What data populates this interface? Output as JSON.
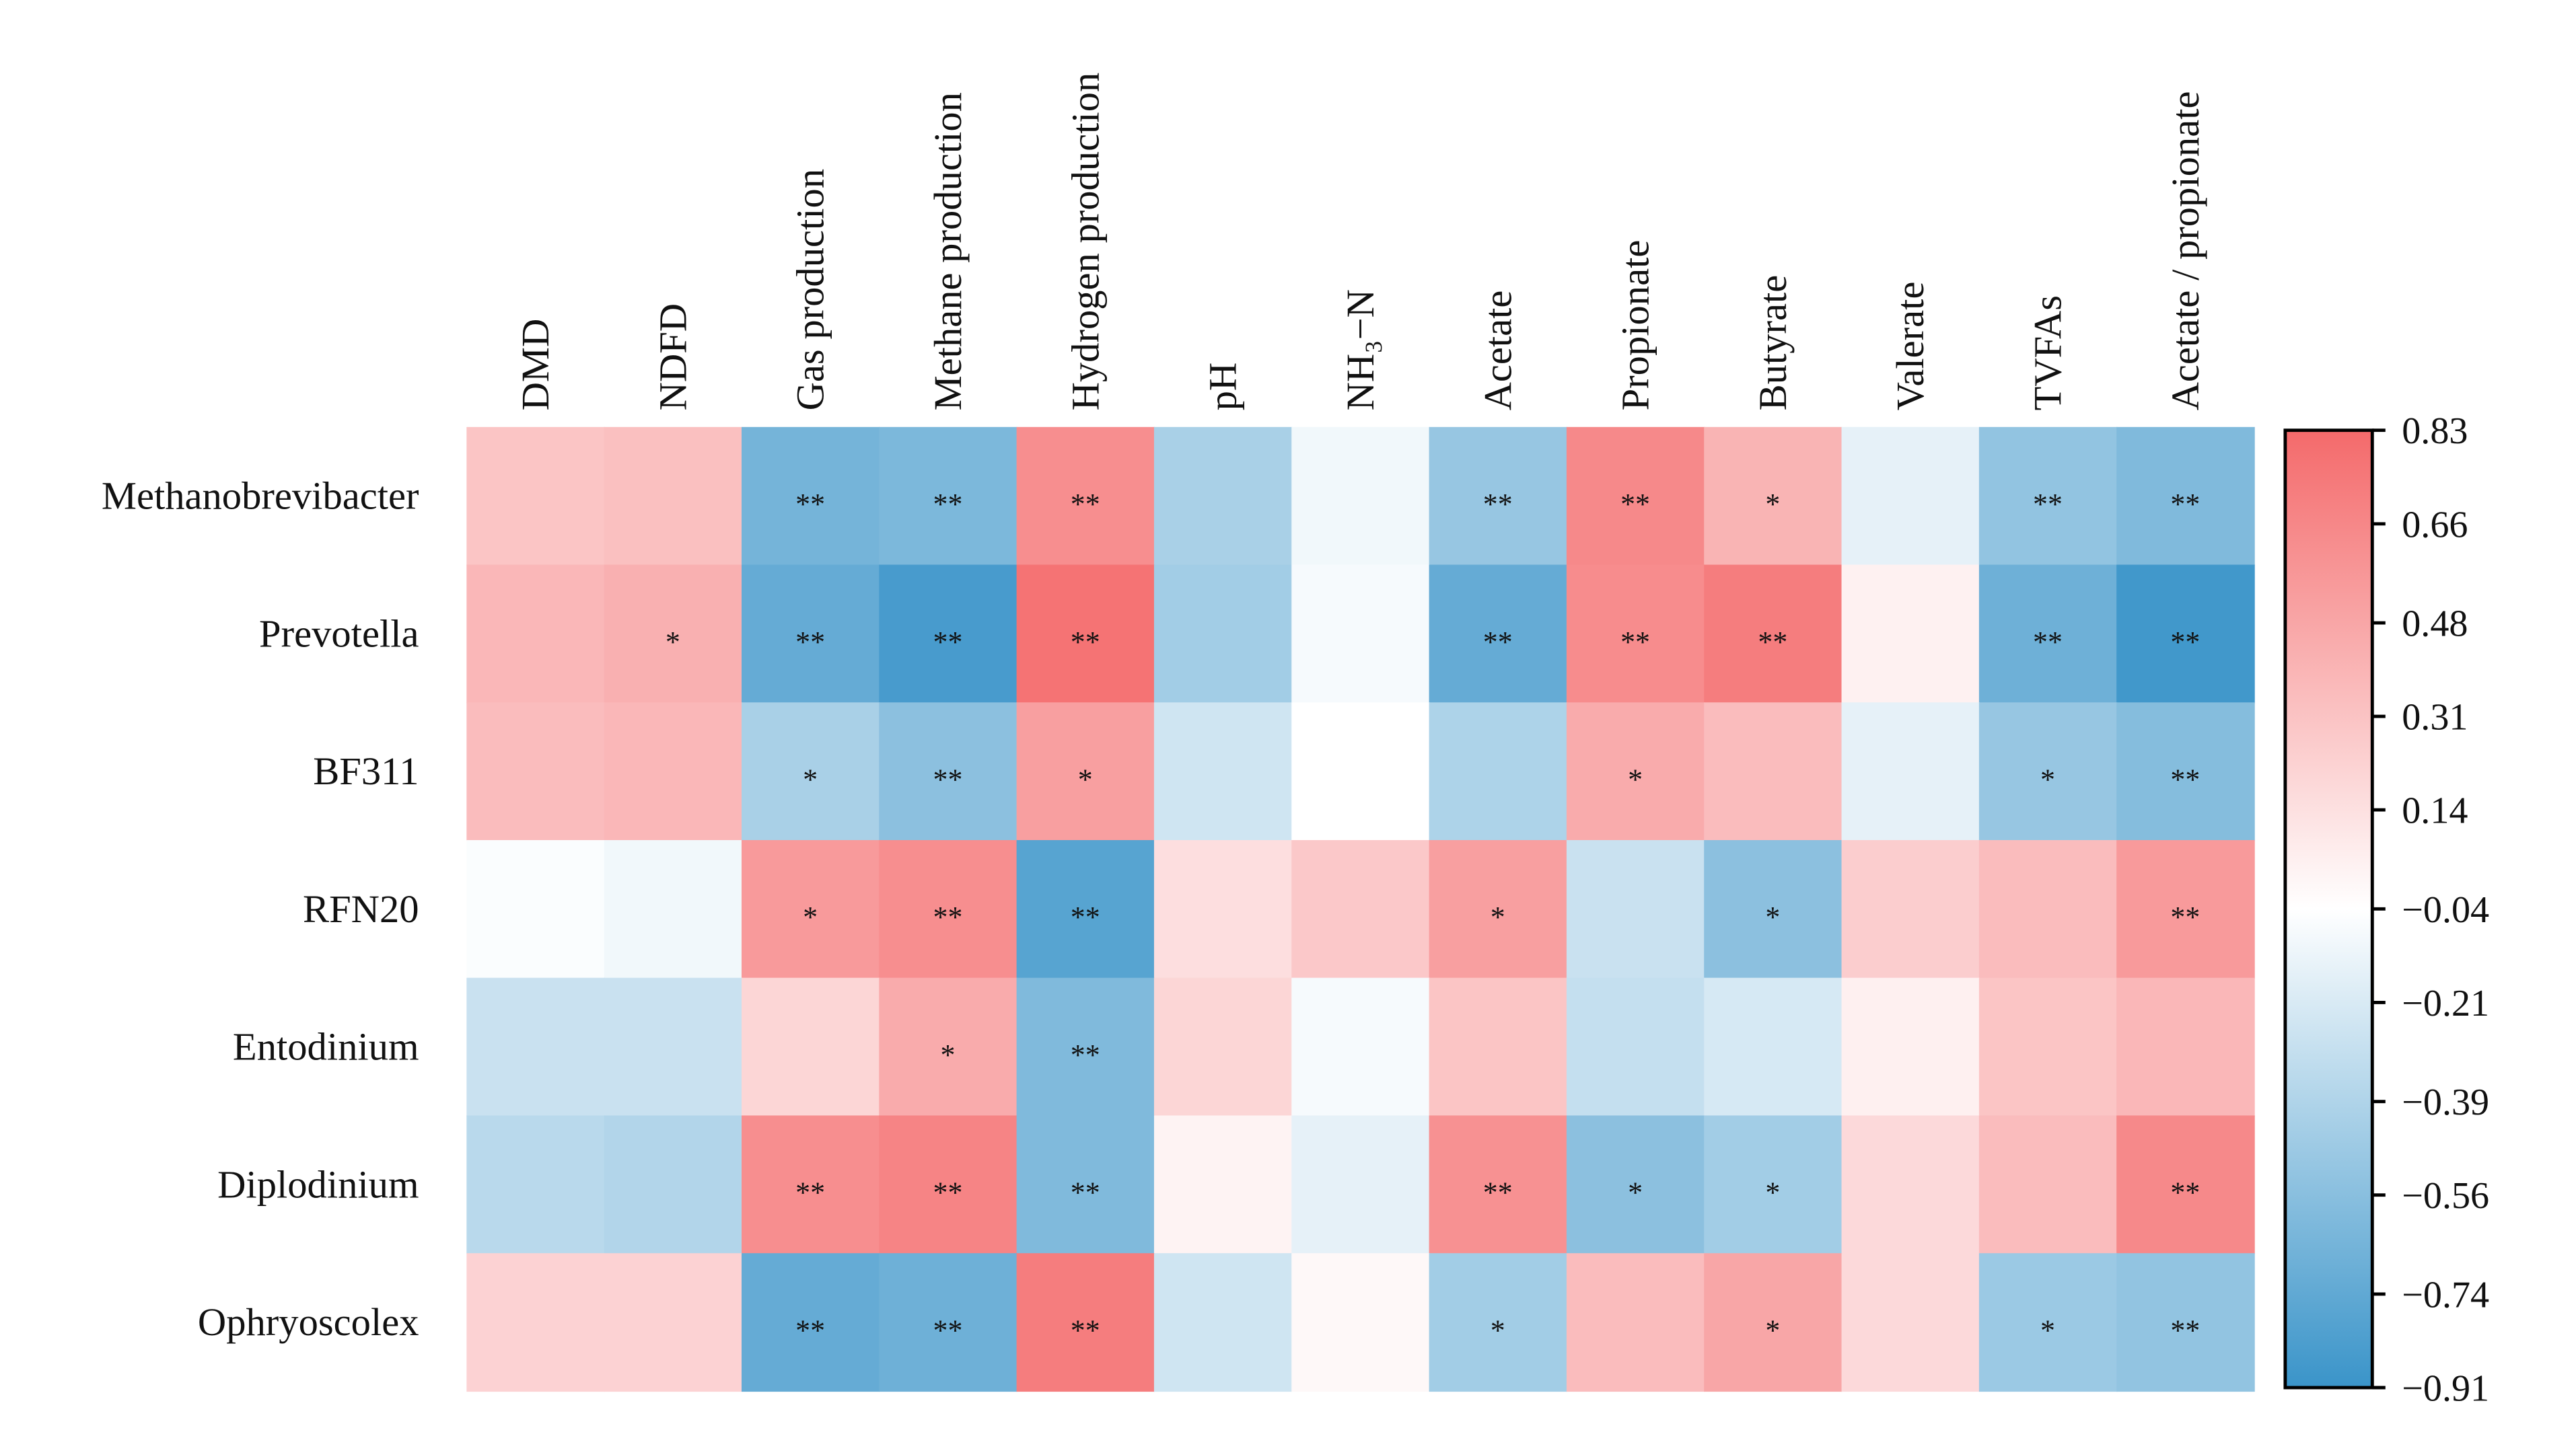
{
  "chart_data": {
    "type": "heatmap",
    "x": [
      "DMD",
      "NDFD",
      "Gas production",
      "Methane production",
      "Hydrogen production",
      "pH",
      "NH₃−N",
      "Acetate",
      "Propionate",
      "Butyrate",
      "Valerate",
      "TVFAs",
      "Acetate / propionate"
    ],
    "y": [
      "Methanobrevibacter",
      "Prevotella",
      "BF311",
      "RFN20",
      "Entodinium",
      "Diplodinium",
      "Ophryoscolex"
    ],
    "values": [
      [
        0.3,
        0.33,
        -0.65,
        -0.62,
        0.62,
        -0.42,
        -0.1,
        -0.5,
        0.65,
        0.4,
        -0.15,
        -0.52,
        -0.6
      ],
      [
        0.38,
        0.42,
        -0.72,
        -0.85,
        0.78,
        -0.45,
        -0.08,
        -0.72,
        0.63,
        0.72,
        0.04,
        -0.68,
        -0.88
      ],
      [
        0.35,
        0.38,
        -0.42,
        -0.55,
        0.52,
        -0.25,
        -0.04,
        -0.4,
        0.45,
        0.35,
        -0.15,
        -0.5,
        -0.58
      ],
      [
        -0.06,
        -0.1,
        0.55,
        0.62,
        -0.78,
        0.15,
        0.28,
        0.52,
        -0.28,
        -0.55,
        0.25,
        0.35,
        0.55
      ],
      [
        -0.28,
        -0.28,
        0.2,
        0.45,
        -0.6,
        0.2,
        -0.08,
        0.3,
        -0.3,
        -0.22,
        0.05,
        0.3,
        0.38
      ],
      [
        -0.35,
        -0.38,
        0.62,
        0.68,
        -0.6,
        0.03,
        -0.15,
        0.6,
        -0.55,
        -0.45,
        0.18,
        0.35,
        0.65
      ],
      [
        0.22,
        0.22,
        -0.72,
        -0.68,
        0.72,
        -0.25,
        0.0,
        -0.45,
        0.35,
        0.48,
        0.18,
        -0.48,
        -0.52
      ]
    ],
    "significance": [
      [
        null,
        null,
        "**",
        "**",
        "**",
        null,
        null,
        "**",
        "**",
        "*",
        null,
        "**",
        "**"
      ],
      [
        null,
        "*",
        "**",
        "**",
        "**",
        null,
        null,
        "**",
        "**",
        "**",
        null,
        "**",
        "**"
      ],
      [
        null,
        null,
        "*",
        "**",
        "*",
        null,
        null,
        null,
        "*",
        null,
        null,
        "*",
        "**"
      ],
      [
        null,
        null,
        "*",
        "**",
        "**",
        null,
        null,
        "*",
        null,
        "*",
        null,
        null,
        "**"
      ],
      [
        null,
        null,
        null,
        "*",
        "**",
        null,
        null,
        null,
        null,
        null,
        null,
        null,
        null
      ],
      [
        null,
        null,
        "**",
        "**",
        "**",
        null,
        null,
        "**",
        "*",
        "*",
        null,
        null,
        "**"
      ],
      [
        null,
        null,
        "**",
        "**",
        "**",
        null,
        null,
        "*",
        null,
        "*",
        null,
        "*",
        "**"
      ]
    ],
    "colormap": [
      "#3a94c9",
      "#ffffff",
      "#f46a6b"
    ],
    "zlim": [
      -0.91,
      0.83
    ],
    "zticks": [
      0.83,
      0.66,
      0.48,
      0.31,
      0.14,
      {
        "value": -0.04,
        "label": "−0.04"
      },
      {
        "value": -0.21,
        "label": "−0.21"
      },
      {
        "value": -0.39,
        "label": "−0.39"
      },
      {
        "value": -0.56,
        "label": "−0.56"
      },
      {
        "value": -0.74,
        "label": "−0.74"
      },
      {
        "value": -0.91,
        "label": "−0.91"
      }
    ]
  }
}
